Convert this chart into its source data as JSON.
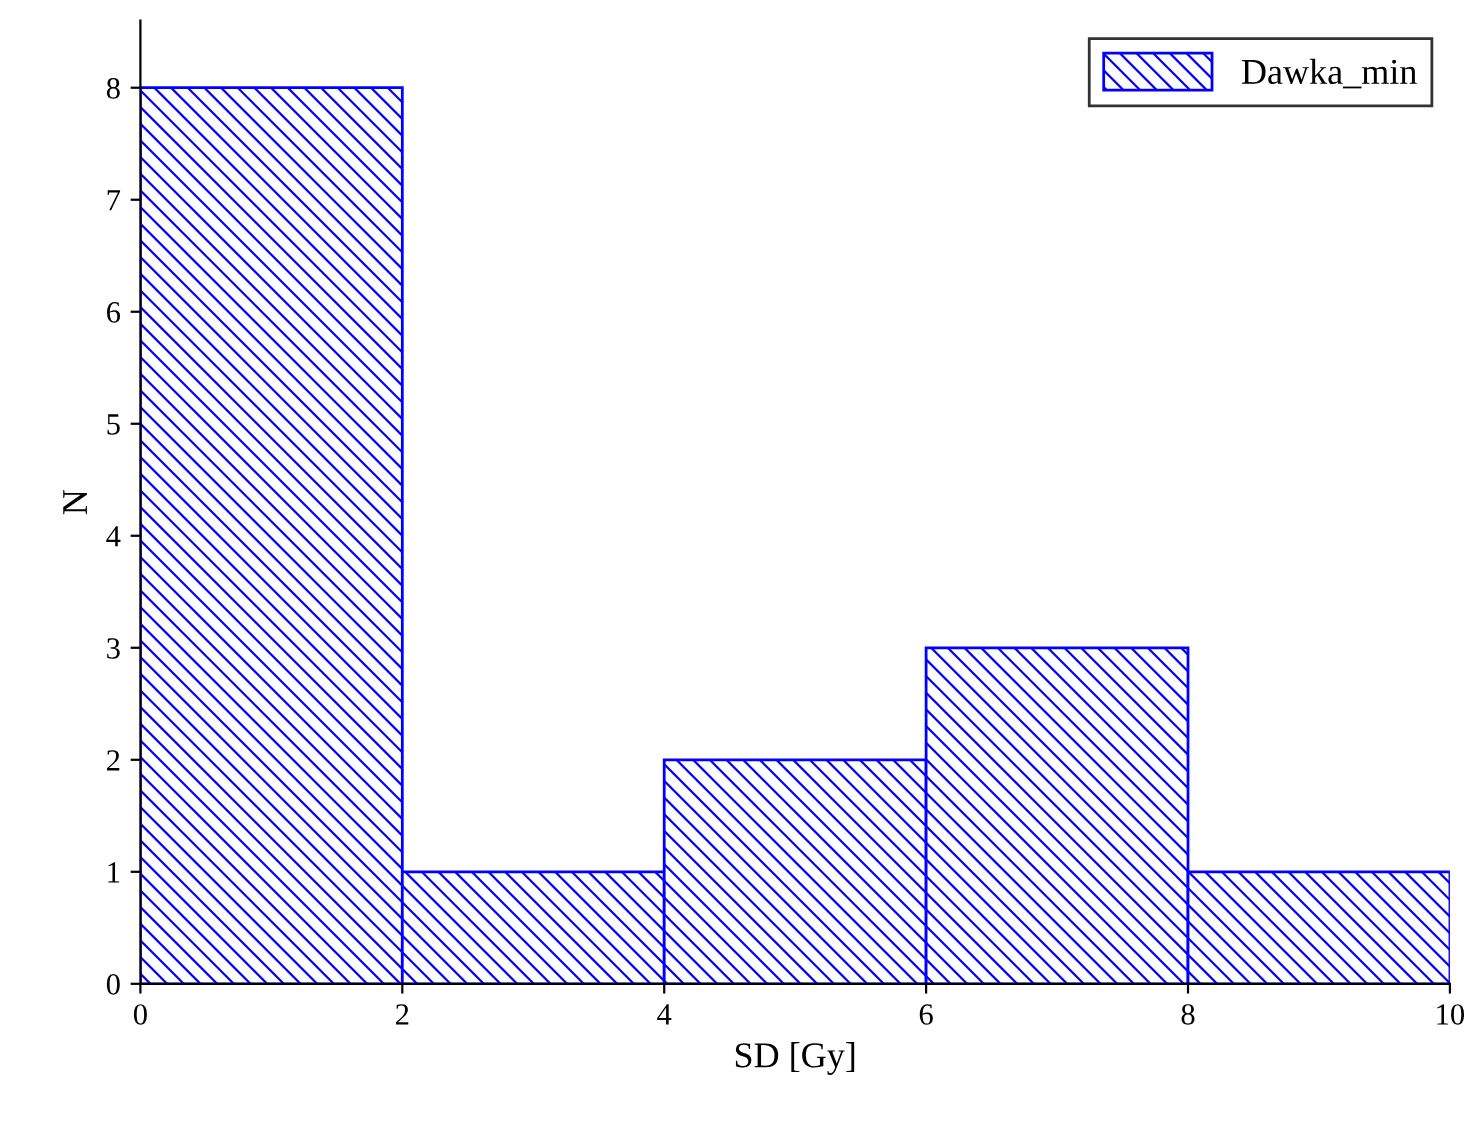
{
  "chart_data": {
    "type": "histogram",
    "xlabel": "SD [Gy]",
    "ylabel": "N",
    "bins": [
      0,
      2,
      4,
      6,
      8,
      10
    ],
    "series": [
      {
        "name": "Dawka_min",
        "color": "#0000ff",
        "values": [
          8,
          1,
          2,
          3,
          1
        ]
      }
    ],
    "xlim": [
      0,
      10
    ],
    "xticks": [
      0,
      2,
      4,
      6,
      8,
      10
    ],
    "ylim": [
      0,
      8.6
    ],
    "yticks": [
      0,
      1,
      2,
      3,
      4,
      5,
      6,
      7,
      8
    ],
    "grid": false,
    "legend": "top right"
  }
}
